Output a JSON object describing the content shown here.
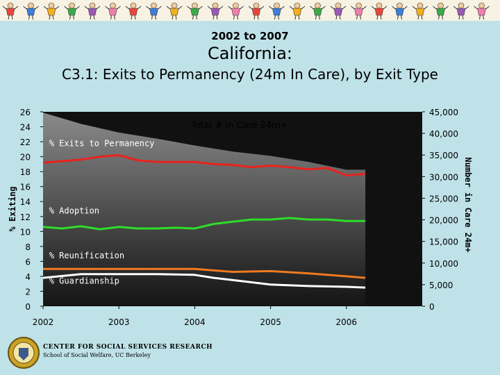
{
  "header": {
    "subtitle": "2002 to 2007",
    "title": "California:",
    "chart_title": "C3.1: Exits to Permanency (24m In Care), by Exit Type"
  },
  "footer": {
    "org": "CENTER FOR SOCIAL SERVICES RESEARCH",
    "dept": "School of Social Welfare, UC Berkeley"
  },
  "colors": {
    "banner_bg": "#f7f2e4",
    "panel_bg": "#bfe2e8",
    "plot_dark": "#111111",
    "area_fill": "#8a8a8a",
    "permanency": "#e8231e",
    "adoption": "#2fdc2a",
    "reunification": "#f07a1f",
    "guardianship": "#ffffff"
  },
  "chart_data": {
    "type": "line",
    "title": "C3.1: Exits to Permanency (24m In Care), by Exit Type",
    "xlabel": "",
    "ylabel": "% Exiting",
    "y2label": "Number in Care 24m+",
    "xlim": [
      2002,
      2007
    ],
    "ylim": [
      0,
      26
    ],
    "y2lim": [
      0,
      45000
    ],
    "x_ticks": [
      "2002",
      "2003",
      "2004",
      "2005",
      "2006"
    ],
    "x_tick_values": [
      2002,
      2003,
      2004,
      2005,
      2006
    ],
    "y_ticks": [
      0,
      2,
      4,
      6,
      8,
      10,
      12,
      14,
      16,
      18,
      20,
      22,
      24,
      26
    ],
    "y2_ticks": [
      "0",
      "5,000",
      "10,000",
      "15,000",
      "20,000",
      "25,000",
      "30,000",
      "35,000",
      "40,000",
      "45,000"
    ],
    "y2_tick_values": [
      0,
      5000,
      10000,
      15000,
      20000,
      25000,
      30000,
      35000,
      40000,
      45000
    ],
    "area": {
      "name": "Total # in Care 24m+",
      "axis": "right",
      "x": [
        2002,
        2002.5,
        2003,
        2003.5,
        2004,
        2004.5,
        2005,
        2005.5,
        2006,
        2006.25
      ],
      "values": [
        44800,
        42200,
        40200,
        38800,
        37200,
        35800,
        34800,
        33400,
        31600,
        31600
      ]
    },
    "series": [
      {
        "name": "% Exits to Permanency",
        "key": "permanency",
        "x": [
          2002,
          2002.25,
          2002.5,
          2002.75,
          2003,
          2003.25,
          2003.5,
          2003.75,
          2004,
          2004.25,
          2004.5,
          2004.75,
          2005,
          2005.25,
          2005.5,
          2005.75,
          2006,
          2006.25
        ],
        "values": [
          19.2,
          19.4,
          19.6,
          20.0,
          20.2,
          19.5,
          19.3,
          19.3,
          19.3,
          19.0,
          18.9,
          18.6,
          18.8,
          18.6,
          18.3,
          18.5,
          17.5,
          17.7
        ],
        "label_x": 2002.08,
        "label_y": 21.4
      },
      {
        "name": "% Adoption",
        "key": "adoption",
        "x": [
          2002,
          2002.25,
          2002.5,
          2002.75,
          2003,
          2003.25,
          2003.5,
          2003.75,
          2004,
          2004.25,
          2004.5,
          2004.75,
          2005,
          2005.25,
          2005.5,
          2005.75,
          2006,
          2006.25
        ],
        "values": [
          10.6,
          10.4,
          10.7,
          10.3,
          10.6,
          10.4,
          10.4,
          10.5,
          10.4,
          11.0,
          11.3,
          11.6,
          11.6,
          11.8,
          11.6,
          11.6,
          11.4,
          11.4
        ],
        "label_x": 2002.08,
        "label_y": 12.4
      },
      {
        "name": "% Reunification",
        "key": "reunification",
        "x": [
          2002,
          2002.5,
          2003,
          2003.5,
          2004,
          2004.5,
          2005,
          2005.5,
          2006,
          2006.25
        ],
        "values": [
          5.0,
          5.0,
          5.0,
          5.0,
          5.0,
          4.6,
          4.7,
          4.4,
          4.0,
          3.8
        ],
        "label_x": 2002.08,
        "label_y": 6.4
      },
      {
        "name": "% Guardianship",
        "key": "guardianship",
        "x": [
          2002,
          2002.5,
          2003,
          2003.5,
          2004,
          2004.25,
          2004.5,
          2005,
          2005.5,
          2006,
          2006.25
        ],
        "values": [
          3.8,
          4.3,
          4.3,
          4.3,
          4.2,
          3.8,
          3.5,
          2.9,
          2.7,
          2.6,
          2.5
        ],
        "label_x": 2002.08,
        "label_y": 3.0
      }
    ]
  }
}
